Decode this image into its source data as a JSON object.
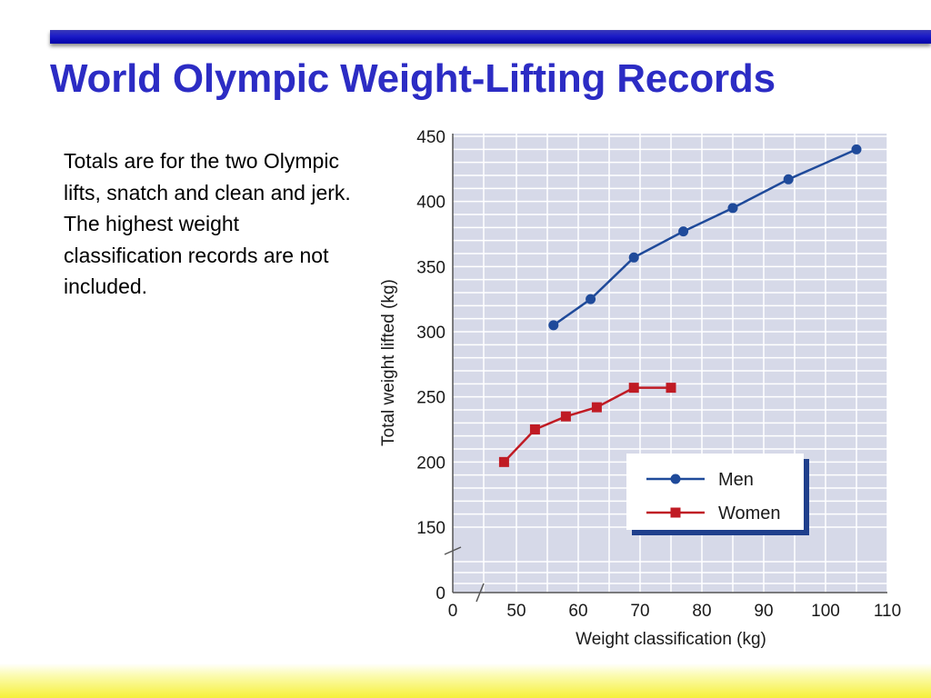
{
  "slide": {
    "title": "World Olympic Weight-Lifting Records",
    "body": "Totals are for the two Olympic lifts, snatch and clean and jerk.  The highest weight classification records are not included."
  },
  "colors": {
    "title": "#2c2cc4",
    "plot_bg": "#d6d9e8",
    "men": "#1f4a9a",
    "women": "#c01b24"
  },
  "chart_data": {
    "type": "line",
    "title": "",
    "xlabel": "Weight classification (kg)",
    "ylabel": "Total weight lifted (kg)",
    "xlim": [
      0,
      110
    ],
    "ylim": [
      0,
      450
    ],
    "axis_breaks": true,
    "x_ticks": [
      0,
      50,
      60,
      70,
      80,
      90,
      100,
      110
    ],
    "y_ticks": [
      0,
      150,
      200,
      250,
      300,
      350,
      400,
      450
    ],
    "grid": true,
    "legend": "lower-right",
    "series": [
      {
        "name": "Men",
        "marker": "circle",
        "x": [
          56,
          62,
          69,
          77,
          85,
          94,
          105
        ],
        "y": [
          305,
          325,
          357,
          377,
          395,
          417,
          440
        ]
      },
      {
        "name": "Women",
        "marker": "square",
        "x": [
          48,
          53,
          58,
          63,
          69,
          75
        ],
        "y": [
          200,
          225,
          235,
          242,
          257,
          257
        ]
      }
    ]
  }
}
